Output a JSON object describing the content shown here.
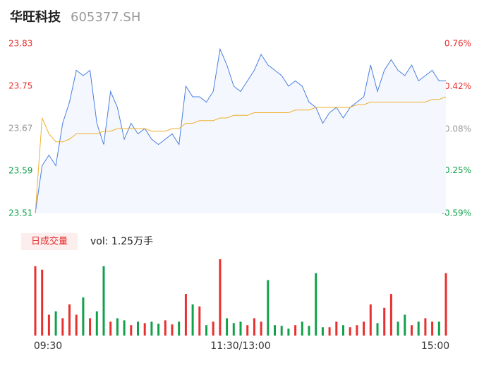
{
  "header": {
    "name": "华旺科技",
    "code": "605377.SH"
  },
  "volume_tab": "日成交量",
  "volume_text": "vol: 1.25万手",
  "chart_data": {
    "type": "line",
    "x": [
      0,
      4,
      8,
      12,
      16,
      20,
      24,
      28,
      32,
      36,
      40,
      44,
      48,
      52,
      56,
      60,
      64,
      68,
      72,
      76,
      80,
      84,
      88,
      92,
      96,
      100,
      104,
      108,
      112,
      116,
      120,
      124,
      128,
      132,
      136,
      140,
      144,
      148,
      152,
      156,
      160,
      164,
      168,
      172,
      176,
      180,
      184,
      188,
      192,
      196,
      200,
      204,
      208,
      212,
      216,
      220,
      224,
      228,
      232,
      236,
      240
    ],
    "xlim": [
      0,
      240
    ],
    "xticks": [
      {
        "value": 0,
        "label": "09:30"
      },
      {
        "value": 120,
        "label": "11:30/13:00"
      },
      {
        "value": 240,
        "label": "15:00"
      }
    ],
    "ylim": [
      23.51,
      23.83
    ],
    "yticks": [
      23.83,
      23.75,
      23.67,
      23.59,
      23.51
    ],
    "y2lim": [
      -0.59,
      0.76
    ],
    "y2ticks": [
      {
        "value": 0.76,
        "label": "0.76%"
      },
      {
        "value": 0.42,
        "label": "0.42%"
      },
      {
        "value": 0.08,
        "label": "0.08%"
      },
      {
        "value": -0.25,
        "label": "-0.25%"
      },
      {
        "value": -0.59,
        "label": "-0.59%"
      }
    ],
    "up_color": "#e8302f",
    "down_color": "#12a14b",
    "flat_color": "#999999",
    "series": [
      {
        "color": "#4a7fe0",
        "values": [
          23.51,
          23.6,
          23.62,
          23.6,
          23.68,
          23.72,
          23.78,
          23.77,
          23.78,
          23.68,
          23.64,
          23.74,
          23.71,
          23.65,
          23.68,
          23.66,
          23.67,
          23.65,
          23.64,
          23.65,
          23.66,
          23.64,
          23.75,
          23.73,
          23.73,
          23.72,
          23.74,
          23.82,
          23.79,
          23.75,
          23.74,
          23.76,
          23.78,
          23.81,
          23.79,
          23.78,
          23.77,
          23.75,
          23.76,
          23.75,
          23.72,
          23.71,
          23.68,
          23.7,
          23.71,
          23.69,
          23.71,
          23.72,
          23.73,
          23.79,
          23.74,
          23.78,
          23.8,
          23.78,
          23.77,
          23.79,
          23.76,
          23.77,
          23.78,
          23.76,
          23.76
        ]
      },
      {
        "color": "#f0b030",
        "values": [
          23.51,
          23.69,
          23.66,
          23.645,
          23.645,
          23.65,
          23.66,
          23.66,
          23.66,
          23.66,
          23.665,
          23.665,
          23.67,
          23.67,
          23.67,
          23.67,
          23.67,
          23.665,
          23.665,
          23.665,
          23.67,
          23.67,
          23.68,
          23.68,
          23.685,
          23.685,
          23.685,
          23.69,
          23.69,
          23.695,
          23.695,
          23.695,
          23.7,
          23.7,
          23.7,
          23.7,
          23.7,
          23.7,
          23.705,
          23.705,
          23.705,
          23.71,
          23.71,
          23.71,
          23.71,
          23.71,
          23.71,
          23.715,
          23.715,
          23.72,
          23.72,
          23.72,
          23.72,
          23.72,
          23.72,
          23.72,
          23.72,
          23.72,
          23.725,
          23.725,
          23.73
        ]
      }
    ],
    "volume": {
      "vlim": [
        0,
        1100
      ],
      "values": [
        1000,
        950,
        300,
        350,
        250,
        450,
        300,
        550,
        250,
        350,
        1000,
        200,
        250,
        220,
        150,
        200,
        180,
        200,
        170,
        220,
        160,
        200,
        600,
        450,
        420,
        150,
        200,
        1100,
        250,
        180,
        200,
        150,
        250,
        200,
        800,
        150,
        140,
        100,
        150,
        200,
        140,
        900,
        120,
        120,
        200,
        150,
        120,
        150,
        200,
        450,
        180,
        400,
        600,
        200,
        300,
        150,
        200,
        250,
        200,
        200,
        900
      ]
    }
  }
}
